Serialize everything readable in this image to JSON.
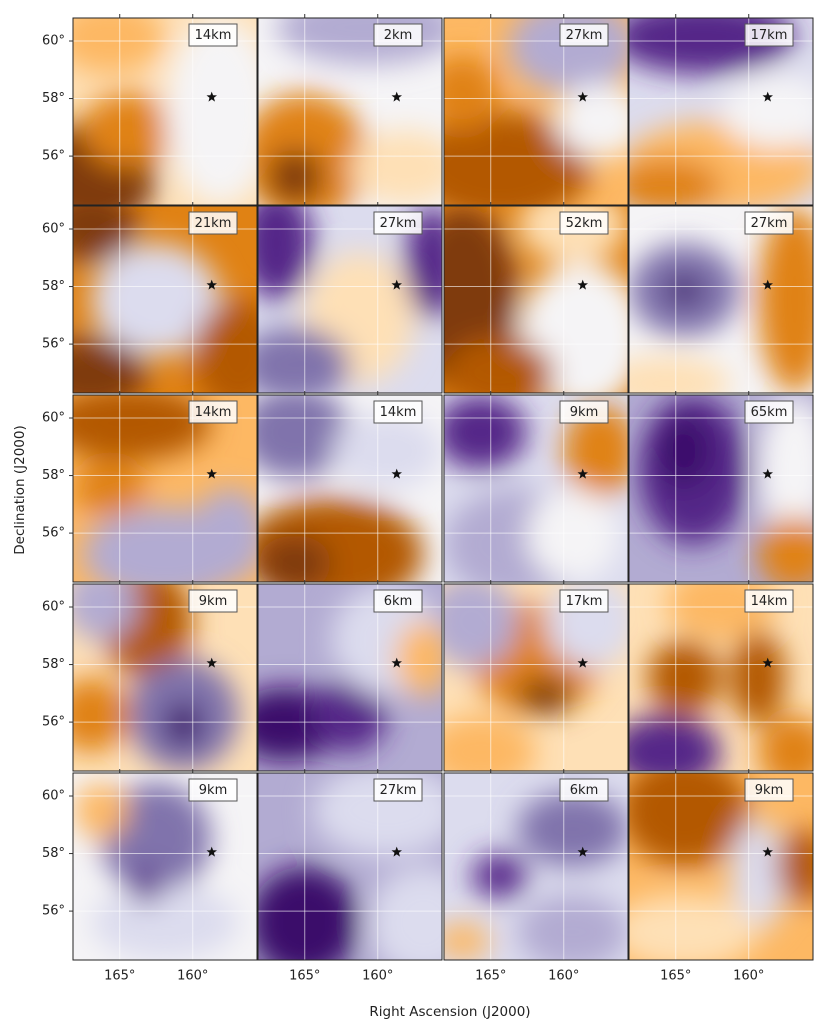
{
  "chart_data": {
    "type": "map-grid",
    "xlabel": "Right Ascension (J2000)",
    "ylabel": "Declination (J2000)",
    "rows": 5,
    "cols": 4,
    "xlim": [
      168.2,
      155.6
    ],
    "ylim": [
      54.3,
      60.8
    ],
    "xticks": [
      {
        "value": 165,
        "label": "165°"
      },
      {
        "value": 160,
        "label": "160°"
      }
    ],
    "yticks": [
      {
        "value": 56,
        "label": "56°"
      },
      {
        "value": 58,
        "label": "58°"
      },
      {
        "value": 60,
        "label": "60°"
      }
    ],
    "star": {
      "x": 158.7,
      "y": 58.05
    },
    "panels": [
      "14km",
      "2km",
      "27km",
      "17km",
      "21km",
      "27km",
      "52km",
      "27km",
      "14km",
      "14km",
      "9km",
      "65km",
      "9km",
      "6km",
      "17km",
      "14km",
      "9km",
      "27km",
      "6km",
      "9km"
    ]
  }
}
